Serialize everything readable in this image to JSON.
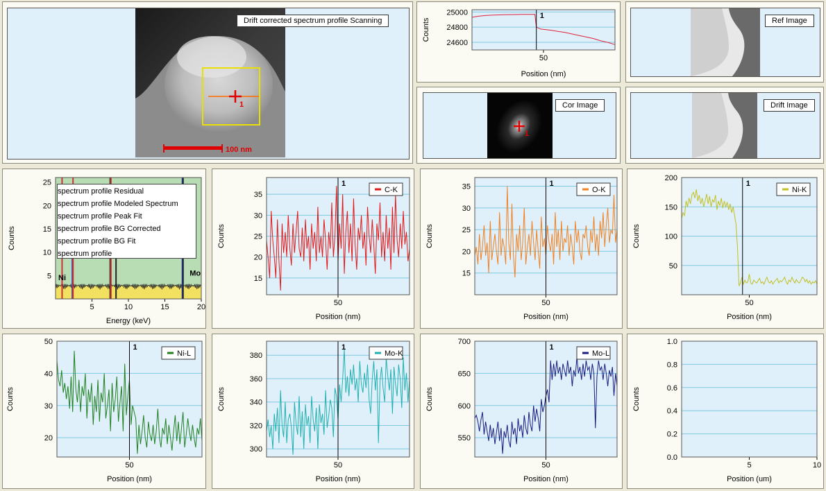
{
  "images": {
    "main": {
      "label": "Drift corrected spectrum profile Scanning",
      "scalebar": "100 nm",
      "marker": "1"
    },
    "ref": {
      "label": "Ref Image"
    },
    "cor": {
      "label": "Cor Image",
      "marker": "1"
    },
    "drift": {
      "label": "Drift Image"
    }
  },
  "legend_menu": {
    "items": [
      "spectrum profile Residual",
      "spectrum profile Modeled Spectrum",
      "spectrum profile Peak Fit",
      "spectrum profile BG Corrected",
      "spectrum profile BG Fit",
      "spectrum profile"
    ]
  },
  "colors": {
    "C-K": "#e01818",
    "O-K": "#f08020",
    "Ni-K": "#c0c020",
    "Ni-L": "#208020",
    "Mo-K": "#20b0b0",
    "Mo-L": "#1a1a80",
    "counts": "#e0203a",
    "gridline": "#7ec8e0",
    "plot_bg": "#e0f0fb"
  },
  "chart_data": [
    {
      "id": "counts",
      "type": "line",
      "xlabel": "Position (nm)",
      "ylabel": "Counts",
      "xlim": [
        0,
        100
      ],
      "ylim": [
        24500,
        25030
      ],
      "xticks": [
        50
      ],
      "yticks": [
        24600,
        24800,
        25000
      ],
      "marker_x": 45,
      "marker_label": "1",
      "series": [
        {
          "color": "#e0203a",
          "x": [
            0,
            5,
            10,
            15,
            20,
            25,
            30,
            35,
            40,
            44,
            45,
            48,
            55,
            60,
            65,
            70,
            75,
            80,
            85,
            90,
            95,
            100
          ],
          "y": [
            24930,
            24945,
            24955,
            24960,
            24962,
            24965,
            24966,
            24968,
            24968,
            24968,
            24800,
            24775,
            24760,
            24745,
            24730,
            24710,
            24690,
            24670,
            24650,
            24620,
            24600,
            24570
          ]
        }
      ]
    },
    {
      "id": "spectrum",
      "type": "area",
      "xlabel": "Energy (keV)",
      "ylabel": "Counts",
      "xlim": [
        0,
        20
      ],
      "ylim": [
        0,
        26
      ],
      "xticks": [
        5,
        10,
        15,
        20
      ],
      "yticks": [
        5,
        10,
        15,
        20,
        25
      ],
      "peak_labels": [
        "Ni",
        "Ni",
        "Mo"
      ]
    },
    {
      "id": "C-K",
      "type": "line",
      "xlabel": "Position (nm)",
      "ylabel": "Counts",
      "xlim": [
        0,
        100
      ],
      "ylim": [
        11,
        39
      ],
      "xticks": [
        50
      ],
      "yticks": [
        15,
        20,
        25,
        30,
        35
      ],
      "marker_x": 50,
      "marker_label": "1",
      "series": [
        {
          "name": "C-K",
          "color": "#e01818",
          "y": [
            24,
            20,
            15,
            31,
            24,
            20,
            15,
            29,
            19,
            12,
            28,
            21,
            26,
            20,
            30,
            22,
            18,
            28,
            21,
            26,
            31,
            22,
            20,
            27,
            19,
            29,
            22,
            25,
            17,
            28,
            22,
            26,
            19,
            32,
            21,
            25,
            20,
            29,
            24,
            17,
            26,
            22,
            33,
            20,
            25,
            37,
            19,
            28,
            22,
            35,
            16,
            26,
            31,
            21,
            28,
            19,
            34,
            23,
            17,
            27,
            24,
            30,
            22,
            26,
            18,
            32,
            25,
            21,
            29,
            23,
            16,
            28,
            24,
            33,
            20,
            26,
            19,
            30,
            22,
            27,
            17,
            32,
            21,
            35,
            24,
            20,
            28,
            22,
            31,
            23,
            26,
            19,
            22
          ]
        }
      ]
    },
    {
      "id": "O-K",
      "type": "line",
      "xlabel": "Position (nm)",
      "ylabel": "Counts",
      "xlim": [
        0,
        100
      ],
      "ylim": [
        10,
        37
      ],
      "xticks": [
        50
      ],
      "yticks": [
        15,
        20,
        25,
        30,
        35
      ],
      "marker_x": 50,
      "marker_label": "1",
      "series": [
        {
          "name": "O-K",
          "color": "#f08020",
          "y": [
            19,
            21,
            17,
            24,
            18,
            21,
            26,
            19,
            22,
            15,
            27,
            18,
            21,
            24,
            20,
            17,
            29,
            19,
            23,
            21,
            17,
            35,
            22,
            18,
            31,
            19,
            14,
            24,
            20,
            26,
            18,
            22,
            30,
            17,
            21,
            24,
            19,
            27,
            22,
            18,
            25,
            20,
            16,
            28,
            21,
            23,
            19,
            26,
            22,
            20,
            24,
            17,
            29,
            21,
            25,
            18,
            27,
            20,
            23,
            22,
            26,
            19,
            24,
            21,
            17,
            27,
            22,
            25,
            20,
            18,
            24,
            23,
            26,
            21,
            19,
            25,
            22,
            28,
            20,
            24,
            19,
            27,
            23,
            29,
            21,
            26,
            30,
            22,
            25,
            24,
            33,
            22,
            25
          ]
        }
      ]
    },
    {
      "id": "Ni-K",
      "type": "line",
      "xlabel": "Position (nm)",
      "ylabel": "Counts",
      "xlim": [
        0,
        100
      ],
      "ylim": [
        0,
        200
      ],
      "xticks": [
        50
      ],
      "yticks": [
        50,
        100,
        150,
        200
      ],
      "marker_x": 45,
      "marker_label": "1",
      "series": [
        {
          "name": "Ni-K",
          "color": "#c0c020",
          "y": [
            130,
            140,
            135,
            160,
            150,
            165,
            155,
            170,
            175,
            165,
            180,
            160,
            170,
            155,
            165,
            150,
            160,
            172,
            155,
            168,
            150,
            162,
            158,
            170,
            145,
            160,
            152,
            165,
            148,
            160,
            150,
            158,
            145,
            155,
            140,
            150,
            135,
            120,
            80,
            15,
            20,
            30,
            18,
            25,
            20,
            22,
            35,
            20,
            18,
            25,
            22,
            20,
            24,
            28,
            20,
            22,
            18,
            25,
            30,
            22,
            20,
            24,
            18,
            22,
            25,
            28,
            20,
            24,
            22,
            26,
            30,
            22,
            18,
            25,
            22,
            30,
            24,
            20,
            26,
            22,
            20,
            24,
            30,
            28,
            22,
            26,
            20,
            24,
            18,
            22,
            20,
            24,
            18
          ]
        }
      ]
    },
    {
      "id": "Ni-L",
      "type": "line",
      "xlabel": "Position (nm)",
      "ylabel": "Counts",
      "xlim": [
        0,
        100
      ],
      "ylim": [
        14,
        50
      ],
      "xticks": [
        50
      ],
      "yticks": [
        20,
        30,
        40,
        50
      ],
      "marker_x": 50,
      "marker_label": "1",
      "series": [
        {
          "name": "Ni-L",
          "color": "#208020",
          "y": [
            44,
            38,
            36,
            41,
            34,
            37,
            32,
            36,
            29,
            39,
            28,
            47,
            35,
            31,
            38,
            28,
            36,
            33,
            40,
            26,
            35,
            31,
            37,
            24,
            33,
            28,
            38,
            25,
            34,
            31,
            40,
            26,
            30,
            35,
            22,
            37,
            28,
            32,
            39,
            25,
            31,
            36,
            22,
            43,
            27,
            33,
            38,
            24,
            30,
            28,
            26,
            15,
            24,
            18,
            22,
            27,
            20,
            17,
            25,
            21,
            19,
            24,
            18,
            22,
            29,
            20,
            17,
            23,
            21,
            26,
            18,
            24,
            20,
            16,
            22,
            27,
            19,
            25,
            18,
            23,
            28,
            17,
            21,
            26,
            22,
            19,
            24,
            20,
            17,
            23,
            21,
            26,
            19
          ]
        }
      ]
    },
    {
      "id": "Mo-K",
      "type": "line",
      "xlabel": "Position (nm)",
      "ylabel": "Counts",
      "xlim": [
        0,
        100
      ],
      "ylim": [
        293,
        392
      ],
      "xticks": [
        50
      ],
      "yticks": [
        300,
        320,
        340,
        360,
        380
      ],
      "marker_x": 50,
      "marker_label": "1",
      "series": [
        {
          "name": "Mo-K",
          "color": "#20b0b0",
          "y": [
            315,
            325,
            310,
            320,
            300,
            330,
            315,
            335,
            305,
            350,
            320,
            310,
            340,
            305,
            325,
            330,
            318,
            295,
            340,
            322,
            312,
            345,
            310,
            332,
            300,
            338,
            320,
            328,
            305,
            345,
            325,
            315,
            335,
            300,
            338,
            322,
            330,
            312,
            350,
            318,
            328,
            342,
            335,
            310,
            352,
            345,
            325,
            355,
            340,
            360,
            385,
            348,
            362,
            345,
            368,
            355,
            372,
            350,
            360,
            340,
            375,
            355,
            348,
            365,
            352,
            372,
            342,
            330,
            360,
            375,
            350,
            368,
            305,
            358,
            370,
            352,
            340,
            378,
            362,
            350,
            368,
            330,
            370,
            355,
            345,
            372,
            360,
            335,
            378,
            350,
            365,
            340,
            360
          ]
        }
      ]
    },
    {
      "id": "Mo-L",
      "type": "line",
      "xlabel": "Position (nm)",
      "ylabel": "Counts",
      "xlim": [
        0,
        100
      ],
      "ylim": [
        520,
        700
      ],
      "xticks": [
        50
      ],
      "yticks": [
        550,
        600,
        650,
        700
      ],
      "marker_x": 50,
      "marker_label": "1",
      "series": [
        {
          "name": "Mo-L",
          "color": "#1a1a80",
          "y": [
            580,
            585,
            575,
            560,
            578,
            590,
            555,
            575,
            560,
            545,
            570,
            550,
            565,
            540,
            558,
            575,
            545,
            565,
            525,
            560,
            550,
            570,
            545,
            535,
            575,
            555,
            565,
            540,
            580,
            560,
            570,
            550,
            585,
            565,
            555,
            590,
            570,
            560,
            600,
            575,
            595,
            580,
            560,
            610,
            590,
            600,
            615,
            625,
            605,
            670,
            640,
            665,
            645,
            670,
            650,
            660,
            640,
            665,
            655,
            645,
            670,
            650,
            660,
            630,
            655,
            645,
            675,
            650,
            660,
            640,
            665,
            645,
            670,
            655,
            660,
            640,
            665,
            650,
            565,
            645,
            670,
            655,
            660,
            640,
            665,
            650,
            630,
            655,
            645,
            660,
            615,
            650,
            630
          ]
        }
      ]
    },
    {
      "id": "empty",
      "type": "line",
      "xlabel": "Position (um)",
      "ylabel": "Counts",
      "xlim": [
        0,
        10
      ],
      "ylim": [
        0,
        1.0
      ],
      "xticks": [
        5,
        10
      ],
      "yticks": [
        0.0,
        0.2,
        0.4,
        0.6,
        0.8,
        1.0
      ],
      "series": []
    }
  ]
}
